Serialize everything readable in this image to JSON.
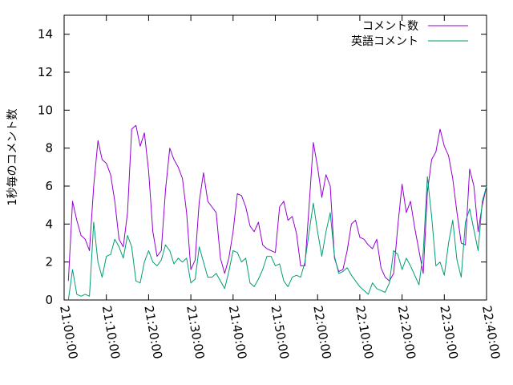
{
  "chart_data": {
    "type": "line",
    "ylabel": "1秒毎のコメント数",
    "ylim": [
      0,
      15
    ],
    "yticks": [
      "0",
      "2",
      "4",
      "6",
      "8",
      "10",
      "12",
      "14"
    ],
    "xticks": [
      "21:00:00",
      "21:10:00",
      "21:20:00",
      "21:30:00",
      "21:40:00",
      "21:50:00",
      "22:00:00",
      "22:10:00",
      "22:20:00",
      "22:30:00",
      "22:40:00"
    ],
    "xlim": [
      "21:00:00",
      "22:40:00"
    ],
    "grid": false,
    "legend_position": "top-right",
    "series": [
      {
        "name": "コメント数",
        "color": "#9400d3",
        "x": [
          "21:01:00",
          "21:02:00",
          "21:03:00",
          "21:04:00",
          "21:05:00",
          "21:06:00",
          "21:07:00",
          "21:08:00",
          "21:09:00",
          "21:10:00",
          "21:11:00",
          "21:12:00",
          "21:13:00",
          "21:14:00",
          "21:15:00",
          "21:16:00",
          "21:17:00",
          "21:18:00",
          "21:19:00",
          "21:20:00",
          "21:21:00",
          "21:22:00",
          "21:23:00",
          "21:24:00",
          "21:25:00",
          "21:26:00",
          "21:27:00",
          "21:28:00",
          "21:29:00",
          "21:30:00",
          "21:31:00",
          "21:32:00",
          "21:33:00",
          "21:34:00",
          "21:35:00",
          "21:36:00",
          "21:37:00",
          "21:38:00",
          "21:39:00",
          "21:40:00",
          "21:41:00",
          "21:42:00",
          "21:43:00",
          "21:44:00",
          "21:45:00",
          "21:46:00",
          "21:47:00",
          "21:48:00",
          "21:49:00",
          "21:50:00",
          "21:51:00",
          "21:52:00",
          "21:53:00",
          "21:54:00",
          "21:55:00",
          "21:56:00",
          "21:57:00",
          "21:58:00",
          "21:59:00",
          "22:00:00",
          "22:01:00",
          "22:02:00",
          "22:03:00",
          "22:04:00",
          "22:05:00",
          "22:06:00",
          "22:07:00",
          "22:08:00",
          "22:09:00",
          "22:10:00",
          "22:11:00",
          "22:12:00",
          "22:13:00",
          "22:14:00",
          "22:15:00",
          "22:16:00",
          "22:17:00",
          "22:18:00",
          "22:19:00",
          "22:20:00",
          "22:21:00",
          "22:22:00",
          "22:23:00",
          "22:24:00",
          "22:25:00",
          "22:26:00",
          "22:27:00",
          "22:28:00",
          "22:29:00",
          "22:30:00",
          "22:31:00",
          "22:32:00",
          "22:33:00",
          "22:34:00",
          "22:35:00",
          "22:36:00",
          "22:37:00",
          "22:38:00",
          "22:39:00",
          "22:40:00"
        ],
        "y": [
          1.0,
          5.2,
          4.2,
          3.4,
          3.2,
          2.6,
          6.0,
          8.4,
          7.4,
          7.2,
          6.6,
          5.2,
          3.2,
          2.8,
          4.6,
          9.0,
          9.2,
          8.1,
          8.8,
          6.8,
          3.6,
          2.3,
          2.6,
          5.8,
          8.0,
          7.4,
          7.0,
          6.4,
          4.6,
          1.6,
          2.1,
          5.2,
          6.7,
          5.2,
          4.9,
          4.6,
          2.2,
          1.4,
          2.2,
          3.6,
          5.6,
          5.5,
          4.9,
          3.9,
          3.6,
          4.1,
          2.9,
          2.7,
          2.6,
          2.5,
          4.9,
          5.2,
          4.2,
          4.4,
          3.5,
          1.8,
          1.8,
          5.0,
          8.3,
          7.0,
          5.4,
          6.6,
          6.0,
          2.2,
          1.5,
          1.6,
          2.6,
          4.0,
          4.2,
          3.3,
          3.2,
          2.9,
          2.7,
          3.2,
          1.7,
          1.2,
          1.0,
          1.4,
          3.9,
          6.1,
          4.6,
          5.2,
          3.8,
          2.6,
          1.4,
          5.7,
          7.4,
          7.8,
          9.0,
          8.1,
          7.6,
          6.4,
          4.6,
          3.0,
          2.9,
          6.9,
          6.0,
          3.6,
          5.0,
          6.0
        ]
      },
      {
        "name": "英語コメント",
        "color": "#009e73",
        "x": [
          "21:01:00",
          "21:02:00",
          "21:03:00",
          "21:04:00",
          "21:05:00",
          "21:06:00",
          "21:07:00",
          "21:08:00",
          "21:09:00",
          "21:10:00",
          "21:11:00",
          "21:12:00",
          "21:13:00",
          "21:14:00",
          "21:15:00",
          "21:16:00",
          "21:17:00",
          "21:18:00",
          "21:19:00",
          "21:20:00",
          "21:21:00",
          "21:22:00",
          "21:23:00",
          "21:24:00",
          "21:25:00",
          "21:26:00",
          "21:27:00",
          "21:28:00",
          "21:29:00",
          "21:30:00",
          "21:31:00",
          "21:32:00",
          "21:33:00",
          "21:34:00",
          "21:35:00",
          "21:36:00",
          "21:37:00",
          "21:38:00",
          "21:39:00",
          "21:40:00",
          "21:41:00",
          "21:42:00",
          "21:43:00",
          "21:44:00",
          "21:45:00",
          "21:46:00",
          "21:47:00",
          "21:48:00",
          "21:49:00",
          "21:50:00",
          "21:51:00",
          "21:52:00",
          "21:53:00",
          "21:54:00",
          "21:55:00",
          "21:56:00",
          "21:57:00",
          "21:58:00",
          "21:59:00",
          "22:00:00",
          "22:01:00",
          "22:02:00",
          "22:03:00",
          "22:04:00",
          "22:05:00",
          "22:06:00",
          "22:07:00",
          "22:08:00",
          "22:09:00",
          "22:10:00",
          "22:11:00",
          "22:12:00",
          "22:13:00",
          "22:14:00",
          "22:15:00",
          "22:16:00",
          "22:17:00",
          "22:18:00",
          "22:19:00",
          "22:20:00",
          "22:21:00",
          "22:22:00",
          "22:23:00",
          "22:24:00",
          "22:25:00",
          "22:26:00",
          "22:27:00",
          "22:28:00",
          "22:29:00",
          "22:30:00",
          "22:31:00",
          "22:32:00",
          "22:33:00",
          "22:34:00",
          "22:35:00",
          "22:36:00",
          "22:37:00",
          "22:38:00",
          "22:39:00",
          "22:40:00"
        ],
        "y": [
          0.0,
          1.6,
          0.3,
          0.2,
          0.3,
          0.2,
          4.1,
          2.0,
          1.2,
          2.3,
          2.4,
          3.2,
          2.8,
          2.2,
          3.4,
          2.8,
          1.0,
          0.9,
          2.0,
          2.6,
          2.0,
          1.8,
          2.1,
          2.9,
          2.6,
          1.9,
          2.2,
          2.0,
          2.2,
          0.9,
          1.1,
          2.8,
          2.0,
          1.2,
          1.2,
          1.4,
          1.0,
          0.6,
          1.5,
          2.6,
          2.5,
          2.0,
          2.2,
          0.9,
          0.7,
          1.1,
          1.6,
          2.3,
          2.3,
          1.8,
          1.9,
          1.0,
          0.7,
          1.2,
          1.3,
          1.2,
          2.0,
          3.6,
          5.1,
          3.6,
          2.3,
          3.6,
          4.6,
          2.3,
          1.4,
          1.5,
          1.7,
          1.3,
          1.0,
          0.7,
          0.5,
          0.3,
          0.9,
          0.6,
          0.5,
          0.4,
          0.9,
          2.6,
          2.4,
          1.6,
          2.2,
          1.8,
          1.3,
          0.8,
          2.5,
          6.5,
          4.4,
          1.8,
          2.0,
          1.3,
          3.0,
          4.2,
          2.1,
          1.2,
          4.1,
          4.8,
          3.7,
          2.6,
          5.2,
          6.0
        ]
      }
    ]
  }
}
